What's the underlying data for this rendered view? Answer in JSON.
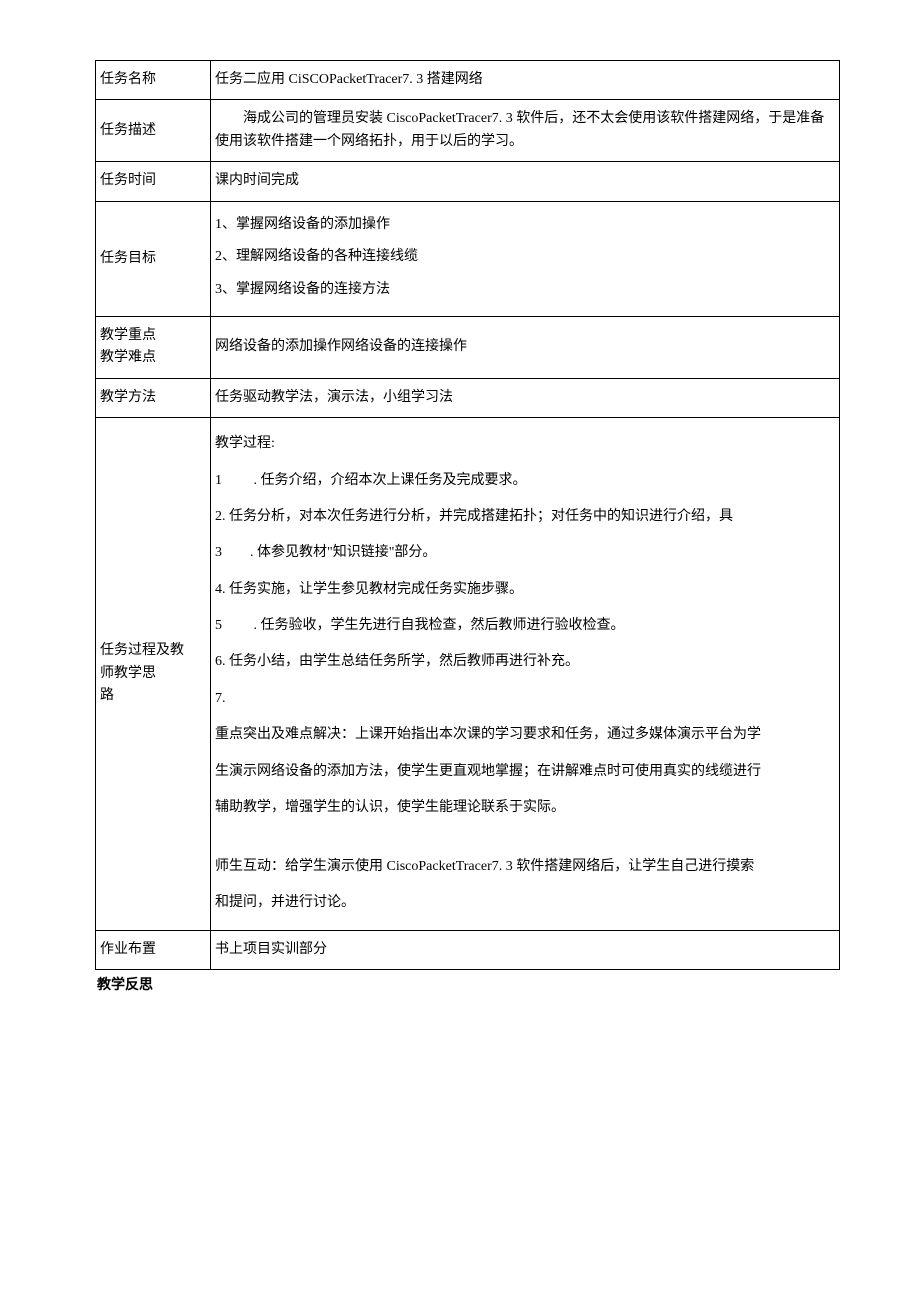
{
  "table": {
    "row1": {
      "label": "任务名称",
      "content": "任务二应用 CiSCOPacketTracer7. 3 搭建网络"
    },
    "row2": {
      "label": "任务描述",
      "content": "　　海成公司的管理员安装 CiscoPacketTracer7. 3 软件后，还不太会使用该软件搭建网络，于是准备使用该软件搭建一个网络拓扑，用于以后的学习。"
    },
    "row3": {
      "label": "任务时间",
      "content": "课内时间完成"
    },
    "row4": {
      "label": "任务目标",
      "item1": "1、掌握网络设备的添加操作",
      "item2": "2、理解网络设备的各种连接线缆",
      "item3": "3、掌握网络设备的连接方法"
    },
    "row5": {
      "label1": "教学重点",
      "label2": "教学难点",
      "content": "网络设备的添加操作网络设备的连接操作"
    },
    "row6": {
      "label": "教学方法",
      "content": "任务驱动教学法，演示法，小组学习法"
    },
    "row7": {
      "label1": "任务过程及教",
      "label2": "师教学思",
      "label3": "路",
      "p1": "教学过程:",
      "p2": "1　　 . 任务介绍，介绍本次上课任务及完成要求。",
      "p3": "2. 任务分析，对本次任务进行分析，并完成搭建拓扑；对任务中的知识进行介绍，具",
      "p4": "3　　. 体参见教材\"知识链接\"部分。",
      "p5": "4. 任务实施，让学生参见教材完成任务实施步骤。",
      "p6": "5　　 . 任务验收，学生先进行自我检查，然后教师进行验收检查。",
      "p7": "6. 任务小结，由学生总结任务所学，然后教师再进行补充。",
      "p8": "7.",
      "p9": "重点突出及难点解决：上课开始指出本次课的学习要求和任务，通过多媒体演示平台为学",
      "p10": "生演示网络设备的添加方法，使学生更直观地掌握；在讲解难点时可使用真实的线缆进行",
      "p11": "辅助教学，增强学生的认识，使学生能理论联系于实际。",
      "p12": "师生互动：给学生演示使用 CiscoPacketTracer7. 3 软件搭建网络后，让学生自己进行摸索",
      "p13": "和提问，并进行讨论。"
    },
    "row8": {
      "label": "作业布置",
      "content": "书上项目实训部分"
    }
  },
  "footer": "教学反思"
}
